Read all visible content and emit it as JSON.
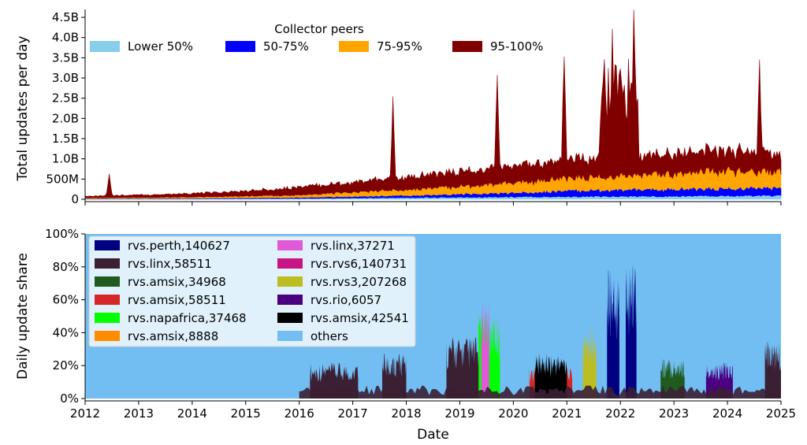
{
  "chart_data": [
    {
      "type": "area",
      "stacked": true,
      "ylabel": "Total updates per day",
      "ylim": [
        0,
        4500000000
      ],
      "y_ticks": [
        {
          "value": 0,
          "label": "0"
        },
        {
          "value": 500000000,
          "label": "500M"
        },
        {
          "value": 1000000000,
          "label": "1.0B"
        },
        {
          "value": 1500000000,
          "label": "1.5B"
        },
        {
          "value": 2000000000,
          "label": "2.0B"
        },
        {
          "value": 2500000000,
          "label": "2.5B"
        },
        {
          "value": 3000000000,
          "label": "3.0B"
        },
        {
          "value": 3500000000,
          "label": "3.5B"
        },
        {
          "value": 4000000000,
          "label": "4.0B"
        },
        {
          "value": 4500000000,
          "label": "4.5B"
        }
      ],
      "legend_title": "Collector peers",
      "legend_position": "top",
      "series": [
        {
          "name": "Lower 50%",
          "color": "#87ceeb",
          "points": [
            [
              2012.0,
              8000000.0
            ],
            [
              2014.0,
              12000000.0
            ],
            [
              2016.0,
              20000000.0
            ],
            [
              2018.0,
              40000000.0
            ],
            [
              2020.0,
              60000000.0
            ],
            [
              2022.0,
              70000000.0
            ],
            [
              2024.0,
              85000000.0
            ],
            [
              2025.0,
              90000000.0
            ]
          ]
        },
        {
          "name": "50-75%",
          "color": "#0000ff",
          "points": [
            [
              2012.0,
              8000000.0
            ],
            [
              2014.0,
              12000000.0
            ],
            [
              2016.0,
              25000000.0
            ],
            [
              2018.0,
              55000000.0
            ],
            [
              2020.0,
              100000000.0
            ],
            [
              2021.0,
              150000000.0
            ],
            [
              2022.0,
              160000000.0
            ],
            [
              2023.0,
              170000000.0
            ],
            [
              2024.0,
              180000000.0
            ],
            [
              2025.0,
              190000000.0
            ]
          ]
        },
        {
          "name": "75-95%",
          "color": "#ffa500",
          "points": [
            [
              2012.0,
              20000000.0
            ],
            [
              2014.0,
              30000000.0
            ],
            [
              2016.0,
              60000000.0
            ],
            [
              2018.0,
              150000000.0
            ],
            [
              2019.0,
              190000000.0
            ],
            [
              2020.0,
              240000000.0
            ],
            [
              2021.0,
              310000000.0
            ],
            [
              2022.0,
              330000000.0
            ],
            [
              2023.0,
              380000000.0
            ],
            [
              2024.0,
              440000000.0
            ],
            [
              2025.0,
              400000000.0
            ]
          ]
        },
        {
          "name": "95-100%",
          "color": "#800000",
          "points": [
            [
              2012.0,
              40000000.0
            ],
            [
              2013.0,
              60000000.0
            ],
            [
              2014.0,
              90000000.0
            ],
            [
              2015.0,
              120000000.0
            ],
            [
              2016.0,
              200000000.0
            ],
            [
              2017.0,
              240000000.0
            ],
            [
              2018.0,
              300000000.0
            ],
            [
              2019.0,
              370000000.0
            ],
            [
              2020.0,
              400000000.0
            ],
            [
              2021.0,
              450000000.0
            ],
            [
              2022.0,
              450000000.0
            ],
            [
              2023.0,
              480000000.0
            ],
            [
              2024.0,
              520000000.0
            ],
            [
              2025.0,
              420000000.0
            ]
          ],
          "spikes": [
            [
              2012.45,
              620000000.0
            ],
            [
              2017.75,
              2330000000.0
            ],
            [
              2019.7,
              3030000000.0
            ],
            [
              2020.95,
              3360000000.0
            ],
            [
              2021.85,
              3850000000.0
            ],
            [
              2022.25,
              4280000000.0
            ],
            [
              2024.6,
              2870000000.0
            ]
          ]
        }
      ]
    },
    {
      "type": "area",
      "stacked": true,
      "xlabel": "Date",
      "ylabel": "Daily update share",
      "ylim": [
        0,
        100
      ],
      "y_ticks": [
        {
          "value": 0,
          "label": "0%"
        },
        {
          "value": 20,
          "label": "20%"
        },
        {
          "value": 40,
          "label": "40%"
        },
        {
          "value": 60,
          "label": "60%"
        },
        {
          "value": 80,
          "label": "80%"
        },
        {
          "value": 100,
          "label": "100%"
        }
      ],
      "x_ticks": [
        "2012",
        "2013",
        "2014",
        "2015",
        "2016",
        "2017",
        "2018",
        "2019",
        "2020",
        "2021",
        "2022",
        "2023",
        "2024",
        "2025"
      ],
      "xlim": [
        2012,
        2025
      ],
      "legend_position": "upper-left",
      "legend": [
        {
          "name": "rvs.perth,140627",
          "color": "#000080"
        },
        {
          "name": "rvs.linx,58511",
          "color": "#3b1f33"
        },
        {
          "name": "rvs.amsix,34968",
          "color": "#1f5a1f"
        },
        {
          "name": "rvs.amsix,58511",
          "color": "#d62728"
        },
        {
          "name": "rvs.napafrica,37468",
          "color": "#00ff00"
        },
        {
          "name": "rvs.amsix,8888",
          "color": "#ff8c00"
        },
        {
          "name": "rvs.linx,37271",
          "color": "#e05ad8"
        },
        {
          "name": "rvs.rvs6,140731",
          "color": "#c71585"
        },
        {
          "name": "rvs.rvs3,207268",
          "color": "#bcbd22"
        },
        {
          "name": "rvs.rio,6057",
          "color": "#4b0082"
        },
        {
          "name": "rvs.amsix,42541",
          "color": "#000000"
        },
        {
          "name": "others",
          "color": "#72bef2"
        }
      ],
      "blocks": [
        {
          "series": "rvs.linx,58511",
          "x0": 2016.2,
          "x1": 2017.1,
          "y": 22
        },
        {
          "series": "rvs.linx,58511",
          "x0": 2017.55,
          "x1": 2018.0,
          "y": 28
        },
        {
          "series": "rvs.linx,58511",
          "x0": 2018.75,
          "x1": 2019.4,
          "y": 38
        },
        {
          "series": "rvs.napafrica,37468",
          "x0": 2019.35,
          "x1": 2019.75,
          "y": 52
        },
        {
          "series": "rvs.linx,37271",
          "x0": 2019.4,
          "x1": 2019.55,
          "y": 63
        },
        {
          "series": "rvs.amsix,58511",
          "x0": 2020.3,
          "x1": 2021.1,
          "y": 20
        },
        {
          "series": "rvs.amsix,42541",
          "x0": 2020.4,
          "x1": 2021.0,
          "y": 28
        },
        {
          "series": "rvs.rvs3,207268",
          "x0": 2021.3,
          "x1": 2021.55,
          "y": 44
        },
        {
          "series": "rvs.perth,140627",
          "x0": 2021.75,
          "x1": 2021.98,
          "y": 79
        },
        {
          "series": "rvs.perth,140627",
          "x0": 2022.1,
          "x1": 2022.3,
          "y": 85
        },
        {
          "series": "rvs.amsix,34968",
          "x0": 2022.75,
          "x1": 2023.2,
          "y": 25
        },
        {
          "series": "rvs.rio,6057",
          "x0": 2023.6,
          "x1": 2024.1,
          "y": 22
        },
        {
          "series": "rvs.linx,58511",
          "x0": 2024.7,
          "x1": 2025.0,
          "y": 35
        }
      ]
    }
  ]
}
